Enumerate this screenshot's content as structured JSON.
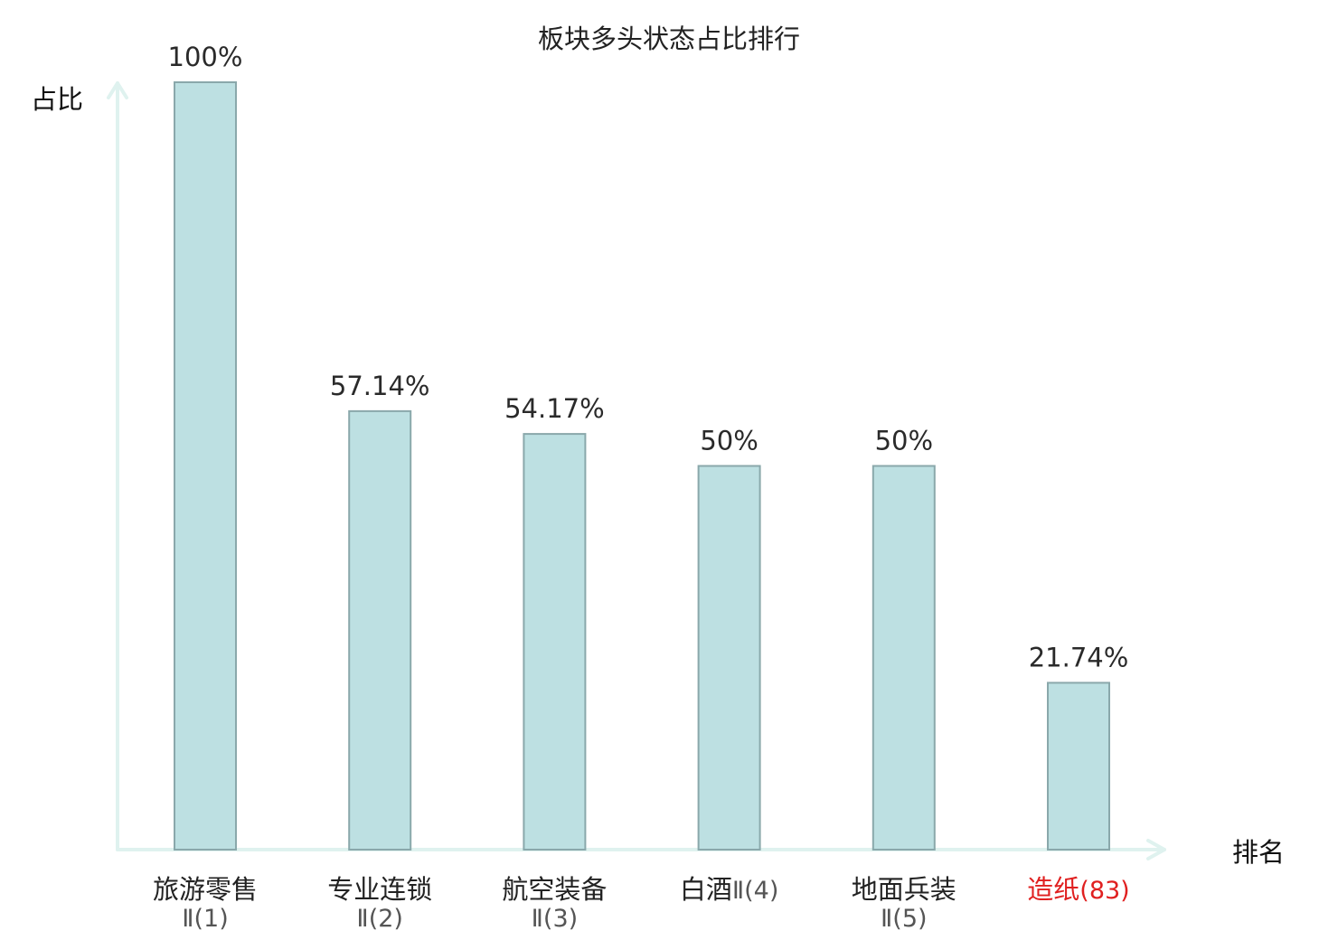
{
  "chart_data": {
    "type": "bar",
    "title": "板块多头状态占比排行",
    "ylabel": "占比",
    "xlabel": "排名",
    "ylim": [
      0,
      100
    ],
    "categories": [
      {
        "name": "旅游零售",
        "rank": "Ⅱ(1)",
        "highlight": false
      },
      {
        "name": "专业连锁",
        "rank": "Ⅱ(2)",
        "highlight": false
      },
      {
        "name": "航空装备",
        "rank": "Ⅱ(3)",
        "highlight": false
      },
      {
        "name": "白酒",
        "rank": "Ⅱ(4)",
        "highlight": false
      },
      {
        "name": "地面兵装",
        "rank": "Ⅱ(5)",
        "highlight": false
      },
      {
        "name": "造纸",
        "rank": "(83)",
        "highlight": true
      }
    ],
    "values": [
      100,
      57.14,
      54.17,
      50,
      50,
      21.74
    ],
    "value_labels": [
      "100%",
      "57.14%",
      "54.17%",
      "50%",
      "50%",
      "21.74%"
    ],
    "colors": {
      "bar_fill": "#bde0e2",
      "bar_stroke": "#8aa8ab",
      "axis": "#dff2ef",
      "text": "#222222",
      "muted_text": "#555555",
      "highlight": "#e02020"
    }
  }
}
